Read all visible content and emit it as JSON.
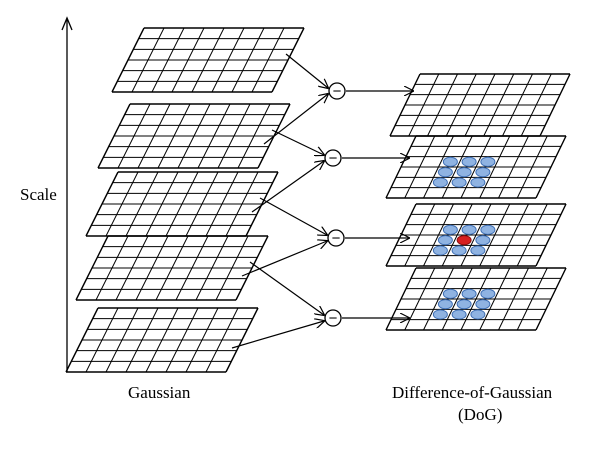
{
  "labels": {
    "scale": "Scale",
    "gaussian": "Gaussian",
    "dog": "Difference-of-Gaussian",
    "dog_abbr": "(DoG)"
  },
  "operator_symbol": "−",
  "gaussian_levels": 5,
  "dog_levels": 4,
  "dog_layers": [
    {
      "level": 1,
      "keypoints": "none"
    },
    {
      "level": 2,
      "keypoints": "neighbors"
    },
    {
      "level": 3,
      "keypoints": "neighbors-with-center"
    },
    {
      "level": 4,
      "keypoints": "neighbors"
    }
  ],
  "colors": {
    "line": "#000000",
    "neighbor": "#8fb3e2",
    "neighbor_stroke": "#3e6fb5",
    "center": "#d62020"
  }
}
